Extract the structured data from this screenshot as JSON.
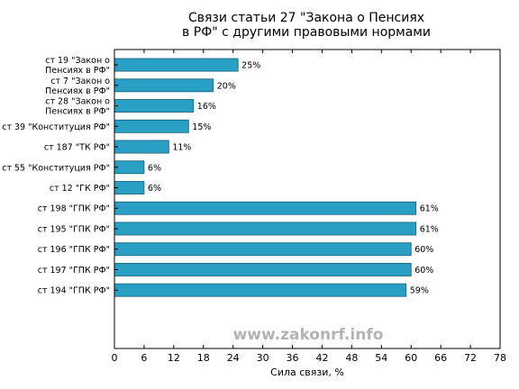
{
  "chart_data": {
    "type": "bar",
    "orientation": "horizontal",
    "title_lines": [
      "Связи статьи 27 \"Закона о Пенсиях",
      "в РФ\" с другими правовыми нормами"
    ],
    "xlabel": "Сила связи, %",
    "ylabel": "",
    "xlim": [
      0,
      78
    ],
    "xticks": [
      0,
      6,
      12,
      18,
      24,
      30,
      36,
      42,
      48,
      54,
      60,
      66,
      72,
      78
    ],
    "grid": false,
    "categories": [
      [
        "ст 19 \"Закон о",
        "Пенсиях в РФ\""
      ],
      [
        "ст 7 \"Закон о",
        "Пенсиях в РФ\""
      ],
      [
        "ст 28 \"Закон о",
        "Пенсиях в РФ\""
      ],
      [
        "ст 39 \"Конституция РФ\""
      ],
      [
        "ст 187 \"ТК РФ\""
      ],
      [
        "ст 55 \"Конституция РФ\""
      ],
      [
        "ст 12 \"ГК РФ\""
      ],
      [
        "ст 198 \"ГПК РФ\""
      ],
      [
        "ст 195 \"ГПК РФ\""
      ],
      [
        "ст 196 \"ГПК РФ\""
      ],
      [
        "ст 197 \"ГПК РФ\""
      ],
      [
        "ст 194 \"ГПК РФ\""
      ]
    ],
    "values": [
      25,
      20,
      16,
      15,
      11,
      6,
      6,
      61,
      61,
      60,
      60,
      59
    ],
    "value_labels": [
      "25%",
      "20%",
      "16%",
      "15%",
      "11%",
      "6%",
      "6%",
      "61%",
      "61%",
      "60%",
      "60%",
      "59%"
    ],
    "bar_color": "#2a9fc4",
    "bar_edge_color": "#1a5f78",
    "watermark": "www.zakonrf.info",
    "watermark_color": "#b3b3b3"
  }
}
